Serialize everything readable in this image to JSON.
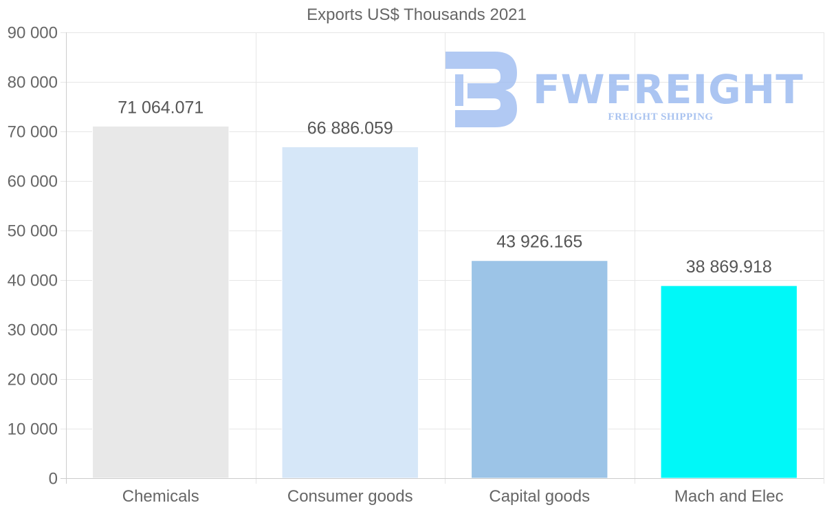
{
  "chart_data": {
    "type": "bar",
    "title": "Exports US$ Thousands 2021",
    "xlabel": "",
    "ylabel": "",
    "ylim": [
      0,
      90000
    ],
    "yticks": [
      0,
      10000,
      20000,
      30000,
      40000,
      50000,
      60000,
      70000,
      80000,
      90000
    ],
    "ytick_labels": [
      "0",
      "10 000",
      "20 000",
      "30 000",
      "40 000",
      "50 000",
      "60 000",
      "70 000",
      "80 000",
      "90 000"
    ],
    "categories": [
      "Chemicals",
      "Consumer goods",
      "Capital goods",
      "Mach and Elec"
    ],
    "values": [
      71064.071,
      66886.059,
      43926.165,
      38869.918
    ],
    "value_labels": [
      "71 064.071",
      "66 886.059",
      "43 926.165",
      "38 869.918"
    ],
    "bar_colors": [
      "#e8e8e8",
      "#d6e7f8",
      "#9cc4e7",
      "#00f8f8"
    ],
    "grid": true,
    "legend": "none"
  },
  "watermark": {
    "brand": "FWFREIGHT",
    "tagline": "FREIGHT SHIPPING",
    "color": "#9dbcf0"
  }
}
